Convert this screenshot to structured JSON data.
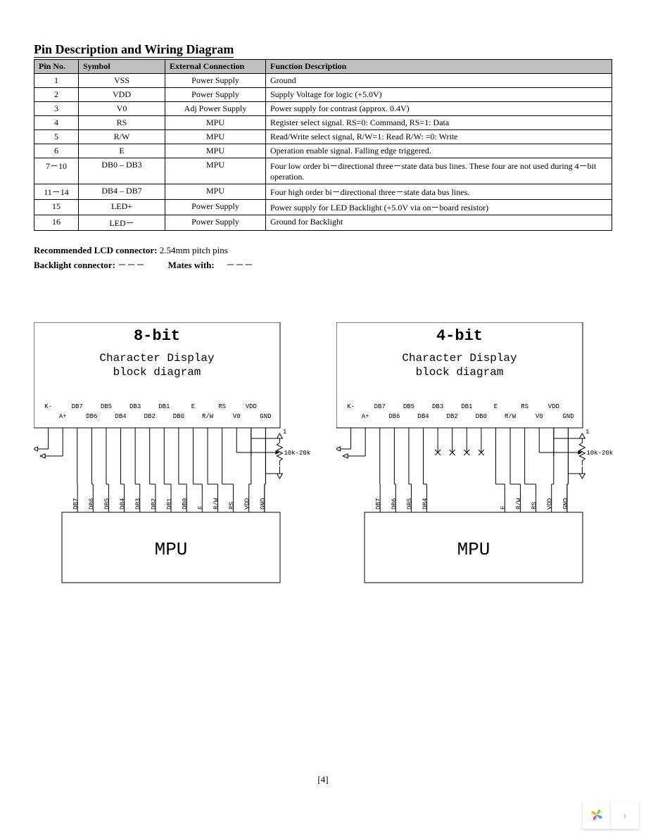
{
  "title": "Pin Description and Wiring Diagram",
  "table": {
    "headers": [
      "Pin No.",
      "Symbol",
      "External Connection",
      "Function Description"
    ],
    "rows": [
      [
        "1",
        "VSS",
        "Power Supply",
        "Ground"
      ],
      [
        "2",
        "VDD",
        "Power Supply",
        "Supply Voltage for logic (+5.0V)"
      ],
      [
        "3",
        "V0",
        "Adj Power Supply",
        "Power supply for contrast (approx. 0.4V)"
      ],
      [
        "4",
        "RS",
        "MPU",
        "Register select    signal. RS=0: Command, RS=1: Data"
      ],
      [
        "5",
        "R/W",
        "MPU",
        "Read/Write select signal, R/W=1: Read R/W: =0: Write"
      ],
      [
        "6",
        "E",
        "MPU",
        "Operation enable signal. Falling edge triggered."
      ],
      [
        "7－10",
        "DB0 – DB3",
        "MPU",
        "Four low order bi－directional three－state data bus lines.  These four are not used during 4－bit operation."
      ],
      [
        "11－14",
        "DB4 – DB7",
        "MPU",
        "Four high order bi－directional three－state data bus lines."
      ],
      [
        "15",
        "LED+",
        "Power Supply",
        "Power supply for LED Backlight (+5.0V via on－board resistor)"
      ],
      [
        "16",
        "LED－",
        "Power Supply",
        "Ground for Backlight"
      ]
    ]
  },
  "notes": {
    "rec_label": "Recommended LCD connector:",
    "rec_value": "2.54mm pitch pins",
    "back_label": "Backlight connector:",
    "back_value": "－－－",
    "mates_label": "Mates with:",
    "mates_value": "－－－"
  },
  "diagrams": {
    "left": {
      "title": "8-bit",
      "subtitle1": "Character Display",
      "subtitle2": "block diagram",
      "top_row1": [
        "K-",
        "DB7",
        "DB5",
        "DB3",
        "DB1",
        "E",
        "RS",
        "VDD"
      ],
      "top_row2": [
        "A+",
        "DB6",
        "DB4",
        "DB2",
        "DB0",
        "R/W",
        "V0",
        "GND"
      ],
      "bot_labels": [
        "DB7",
        "DB6",
        "DB5",
        "DB4",
        "DB3",
        "DB2",
        "DB1",
        "DB0",
        "E",
        "R/W",
        "RS",
        "VDD",
        "GND"
      ],
      "mpu": "MPU",
      "res": "10k-20k",
      "one": "1",
      "no_connect": []
    },
    "right": {
      "title": "4-bit",
      "subtitle1": "Character Display",
      "subtitle2": "block diagram",
      "top_row1": [
        "K-",
        "DB7",
        "DB5",
        "DB3",
        "DB1",
        "E",
        "RS",
        "VDD"
      ],
      "top_row2": [
        "A+",
        "DB6",
        "DB4",
        "DB2",
        "DB0",
        "R/W",
        "V0",
        "GND"
      ],
      "bot_labels": [
        "DB7",
        "DB6",
        "DB5",
        "DB4",
        "",
        "",
        "",
        "",
        "E",
        "R/W",
        "RS",
        "VDD",
        "GND"
      ],
      "mpu": "MPU",
      "res": "10k-20k",
      "one": "1",
      "no_connect": [
        4,
        5,
        6,
        7
      ]
    }
  },
  "page_num": "[4]",
  "colors": {
    "header_bg": "#bfbfbf",
    "logo": {
      "c1": "#f5b81c",
      "c2": "#9ccb3b",
      "c3": "#33a9dc",
      "c4": "#e84f9a"
    }
  }
}
